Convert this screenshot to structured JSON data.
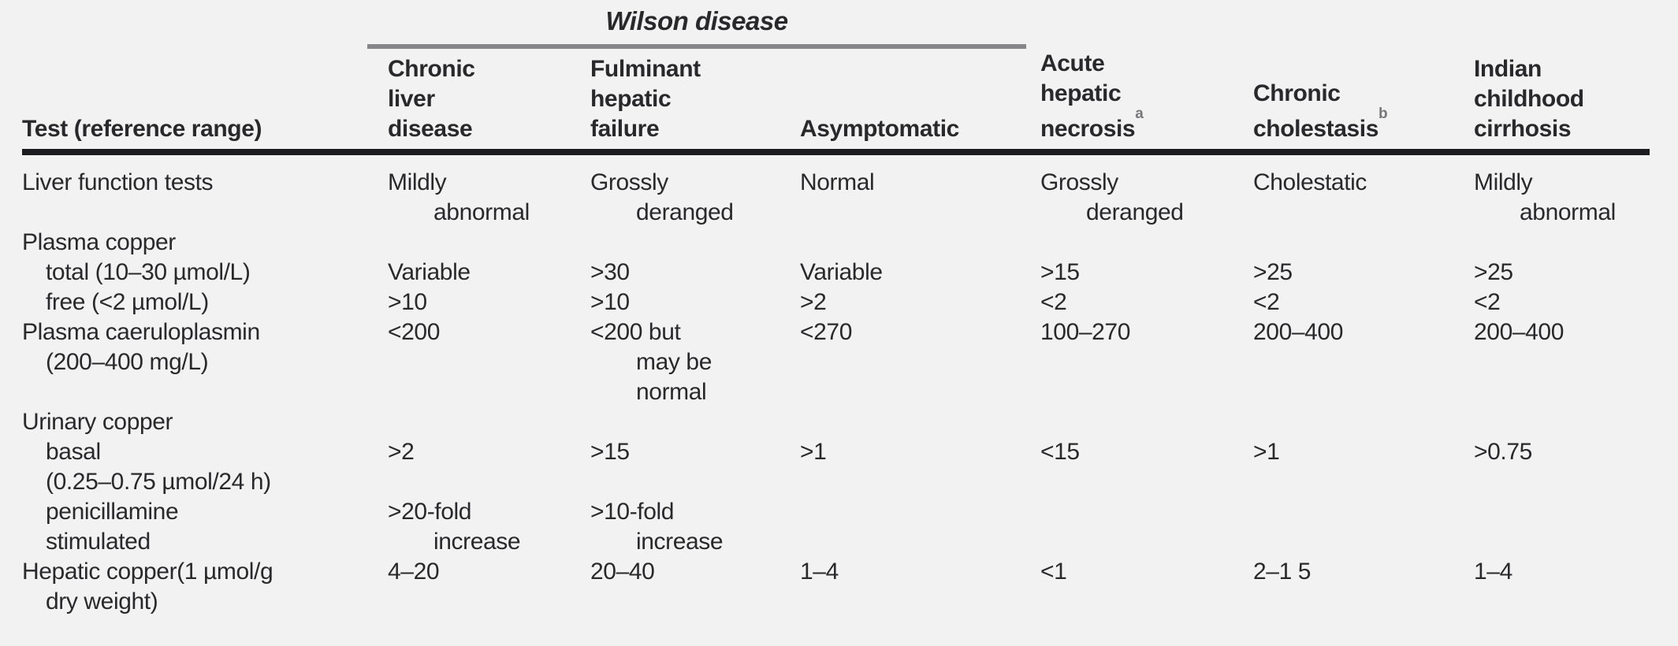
{
  "colors": {
    "background": "#f2f2f3",
    "text": "#29292b",
    "thick_rule": "#1d1d1f",
    "spanner_rule": "#87878a",
    "superscript": "#78787b"
  },
  "table": {
    "spanner": {
      "label": "Wilson disease"
    },
    "header": {
      "test_column": "Test (reference range)",
      "columns": [
        {
          "lines": [
            "Chronic",
            "liver",
            "disease"
          ],
          "sup": ""
        },
        {
          "lines": [
            "Fulminant",
            "hepatic",
            "failure"
          ],
          "sup": ""
        },
        {
          "lines": [
            "Asymptomatic"
          ],
          "sup": ""
        },
        {
          "lines": [
            "Acute",
            "hepatic",
            "necrosis"
          ],
          "sup": "a"
        },
        {
          "lines": [
            "Chronic",
            "cholestasis"
          ],
          "sup": "b"
        },
        {
          "lines": [
            "Indian",
            "childhood",
            "cirrhosis"
          ],
          "sup": ""
        }
      ]
    },
    "rows": [
      {
        "label": [
          {
            "t": "Liver function tests",
            "i": 0
          }
        ],
        "values": [
          [
            {
              "t": "Mildly",
              "i": 0
            },
            {
              "t": "abnormal",
              "i": 1
            }
          ],
          [
            {
              "t": "Grossly",
              "i": 0
            },
            {
              "t": "deranged",
              "i": 1
            }
          ],
          [
            {
              "t": "Normal",
              "i": 0
            }
          ],
          [
            {
              "t": "Grossly",
              "i": 0
            },
            {
              "t": "deranged",
              "i": 1
            }
          ],
          [
            {
              "t": "Cholestatic",
              "i": 0
            }
          ],
          [
            {
              "t": "Mildly",
              "i": 0
            },
            {
              "t": "abnormal",
              "i": 1
            }
          ]
        ]
      },
      {
        "label": [
          {
            "t": "Plasma copper",
            "i": 0
          }
        ],
        "values": [
          [],
          [],
          [],
          [],
          [],
          []
        ]
      },
      {
        "label": [
          {
            "t": "total (10–30 µmol/L)",
            "i": 1
          }
        ],
        "values": [
          [
            {
              "t": "Variable",
              "i": 0
            }
          ],
          [
            {
              "t": ">30",
              "i": 0
            }
          ],
          [
            {
              "t": "Variable",
              "i": 0
            }
          ],
          [
            {
              "t": ">15",
              "i": 0
            }
          ],
          [
            {
              "t": ">25",
              "i": 0
            }
          ],
          [
            {
              "t": ">25",
              "i": 0
            }
          ]
        ]
      },
      {
        "label": [
          {
            "t": "free (<2 µmol/L)",
            "i": 1
          }
        ],
        "values": [
          [
            {
              "t": ">10",
              "i": 0
            }
          ],
          [
            {
              "t": ">10",
              "i": 0
            }
          ],
          [
            {
              "t": ">2",
              "i": 0
            }
          ],
          [
            {
              "t": "<2",
              "i": 0
            }
          ],
          [
            {
              "t": "<2",
              "i": 0
            }
          ],
          [
            {
              "t": "<2",
              "i": 0
            }
          ]
        ]
      },
      {
        "label": [
          {
            "t": "Plasma caeruloplasmin",
            "i": 0
          },
          {
            "t": "(200–400 mg/L)",
            "i": 1
          }
        ],
        "values": [
          [
            {
              "t": "<200",
              "i": 0
            }
          ],
          [
            {
              "t": "<200 but",
              "i": 0
            },
            {
              "t": "may be",
              "i": 1
            },
            {
              "t": "normal",
              "i": 1
            }
          ],
          [
            {
              "t": "<270",
              "i": 0
            }
          ],
          [
            {
              "t": "100–270",
              "i": 0
            }
          ],
          [
            {
              "t": "200–400",
              "i": 0
            }
          ],
          [
            {
              "t": "200–400",
              "i": 0
            }
          ]
        ]
      },
      {
        "label": [
          {
            "t": "Urinary copper",
            "i": 0
          }
        ],
        "values": [
          [],
          [],
          [],
          [],
          [],
          []
        ]
      },
      {
        "label": [
          {
            "t": "basal",
            "i": 1
          },
          {
            "t": "(0.25–0.75 µmol/24 h)",
            "i": 1
          }
        ],
        "values": [
          [
            {
              "t": ">2",
              "i": 0
            }
          ],
          [
            {
              "t": ">15",
              "i": 0
            }
          ],
          [
            {
              "t": ">1",
              "i": 0
            }
          ],
          [
            {
              "t": "<15",
              "i": 0
            }
          ],
          [
            {
              "t": ">1",
              "i": 0
            }
          ],
          [
            {
              "t": ">0.75",
              "i": 0
            }
          ]
        ]
      },
      {
        "label": [
          {
            "t": "penicillamine",
            "i": 1
          },
          {
            "t": "stimulated",
            "i": 1
          }
        ],
        "values": [
          [
            {
              "t": ">20-fold",
              "i": 0
            },
            {
              "t": "increase",
              "i": 1
            }
          ],
          [
            {
              "t": ">10-fold",
              "i": 0
            },
            {
              "t": "increase",
              "i": 1
            }
          ],
          [],
          [],
          [],
          []
        ]
      },
      {
        "label": [
          {
            "t": "Hepatic copper(1 µmol/g",
            "i": 0
          },
          {
            "t": "dry weight)",
            "i": 1
          }
        ],
        "values": [
          [
            {
              "t": "4–20",
              "i": 0
            }
          ],
          [
            {
              "t": "20–40",
              "i": 0
            }
          ],
          [
            {
              "t": "1–4",
              "i": 0
            }
          ],
          [
            {
              "t": "<1",
              "i": 0
            }
          ],
          [
            {
              "t": "2–1 5",
              "i": 0
            }
          ],
          [
            {
              "t": "1–4",
              "i": 0
            }
          ]
        ]
      }
    ]
  }
}
